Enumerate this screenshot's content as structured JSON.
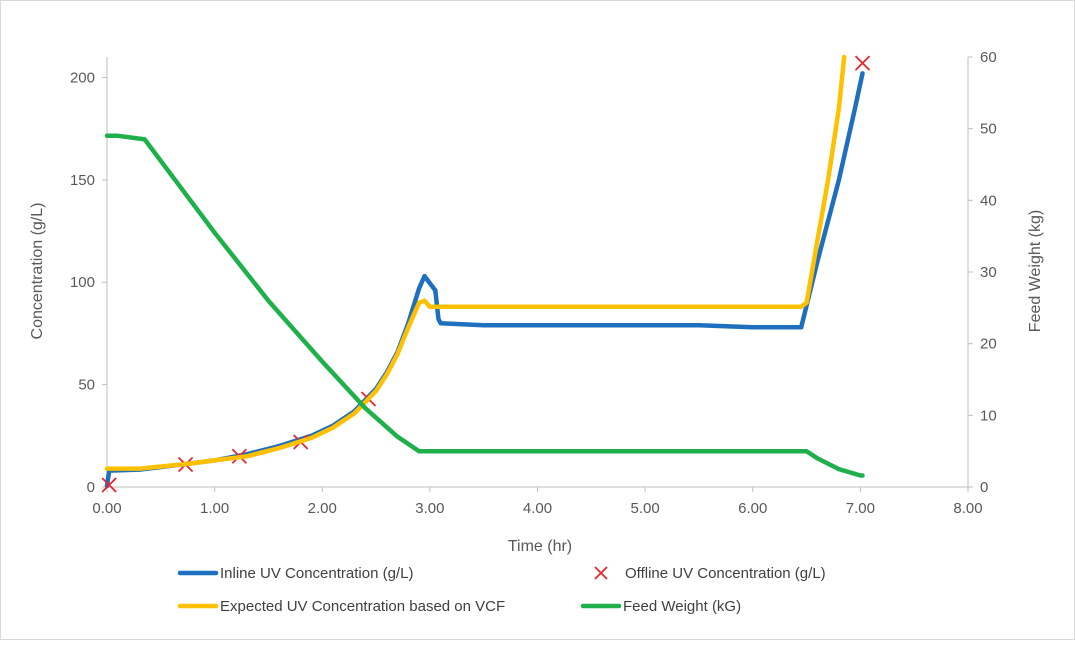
{
  "chart_data": {
    "type": "line",
    "xlabel": "Time (hr)",
    "ylabel": "Concentration (g/L)",
    "y2label": "Feed Weight (kg)",
    "xlim": [
      0,
      8
    ],
    "ylim": [
      0,
      210
    ],
    "y2lim": [
      0,
      60
    ],
    "x_ticks": [
      "0.00",
      "1.00",
      "2.00",
      "3.00",
      "4.00",
      "5.00",
      "6.00",
      "7.00",
      "8.00"
    ],
    "y_ticks": [
      "0",
      "50",
      "100",
      "150",
      "200"
    ],
    "y2_ticks": [
      "0",
      "10",
      "20",
      "30",
      "40",
      "50",
      "60"
    ],
    "grid": false,
    "legend_position": "bottom",
    "series": [
      {
        "name": "Inline UV Concentration (g/L)",
        "axis": "left",
        "color": "#1f6fbf",
        "style": "line",
        "x": [
          0.0,
          0.02,
          0.3,
          0.7,
          1.0,
          1.3,
          1.6,
          1.9,
          2.1,
          2.3,
          2.5,
          2.6,
          2.7,
          2.8,
          2.9,
          2.95,
          3.05,
          3.08,
          3.1,
          3.5,
          4.0,
          4.5,
          5.0,
          5.5,
          6.0,
          6.45,
          6.6,
          6.8,
          6.95,
          7.02
        ],
        "y": [
          0.5,
          8,
          8.5,
          11,
          13,
          16,
          20,
          25,
          30,
          37,
          48,
          56,
          66,
          80,
          97,
          103,
          96,
          82,
          80,
          79,
          79,
          79,
          79,
          79,
          78,
          78,
          110,
          150,
          185,
          202
        ]
      },
      {
        "name": "Offline UV Concentration (g/L)",
        "axis": "left",
        "color": "#e8262d",
        "style": "marker-x",
        "x": [
          0.02,
          0.73,
          1.23,
          1.8,
          2.43,
          7.02
        ],
        "y": [
          1,
          11,
          15,
          22,
          43,
          207
        ]
      },
      {
        "name": "Expected UV Concentration based on VCF",
        "axis": "left",
        "color": "#ffc000",
        "style": "line",
        "x": [
          0.0,
          0.3,
          0.7,
          1.0,
          1.3,
          1.6,
          1.9,
          2.1,
          2.3,
          2.5,
          2.6,
          2.7,
          2.8,
          2.9,
          2.95,
          3.0,
          3.5,
          4.0,
          4.5,
          5.0,
          5.5,
          6.0,
          6.45,
          6.5,
          6.6,
          6.7,
          6.8,
          6.85
        ],
        "y": [
          9,
          9,
          11,
          13,
          15,
          19,
          24,
          29,
          36,
          47,
          55,
          65,
          78,
          90,
          91,
          88,
          88,
          88,
          88,
          88,
          88,
          88,
          88,
          90,
          120,
          150,
          185,
          210
        ]
      },
      {
        "name": "Feed Weight (kG)",
        "axis": "right",
        "color": "#1fb04b",
        "style": "line",
        "x": [
          0.0,
          0.1,
          0.35,
          0.6,
          1.0,
          1.5,
          2.0,
          2.4,
          2.7,
          2.9,
          3.0,
          3.5,
          4.0,
          4.5,
          5.0,
          5.5,
          6.0,
          6.5,
          6.6,
          6.8,
          7.0,
          7.02
        ],
        "y": [
          49,
          49,
          48.5,
          43.5,
          35.5,
          26,
          17.5,
          11,
          7,
          5,
          5,
          5,
          5,
          5,
          5,
          5,
          5,
          5,
          4,
          2.5,
          1.6,
          1.6
        ]
      }
    ]
  }
}
